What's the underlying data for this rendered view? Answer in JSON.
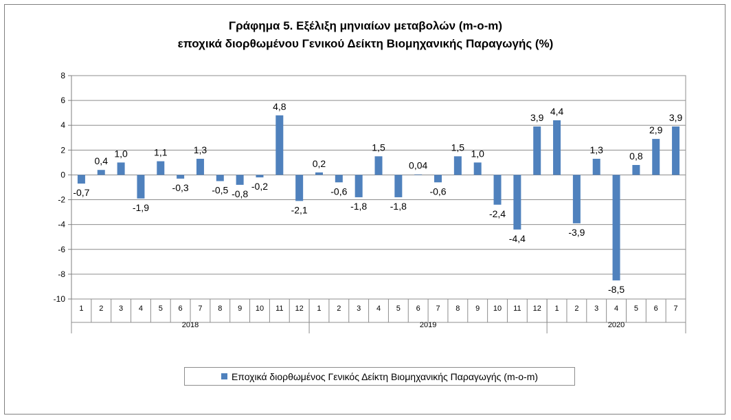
{
  "chart_data": {
    "type": "bar",
    "title": "Γράφημα 5. Εξέλιξη μηνιαίων μεταβολών (m-o-m)",
    "subtitle": "εποχικά διορθωμένου Γενικού Δείκτη Βιομηχανικής Παραγωγής (%)",
    "xlabel": "",
    "ylabel": "",
    "ylim": [
      -10,
      8
    ],
    "yticks": [
      8,
      6,
      4,
      2,
      0,
      -2,
      -4,
      -6,
      -8,
      -10
    ],
    "grid": true,
    "legend_position": "bottom",
    "color": "#4f81bd",
    "years": [
      {
        "label": "2018",
        "months": [
          "1",
          "2",
          "3",
          "4",
          "5",
          "6",
          "7",
          "8",
          "9",
          "10",
          "11",
          "12"
        ]
      },
      {
        "label": "2019",
        "months": [
          "1",
          "2",
          "3",
          "4",
          "5",
          "6",
          "7",
          "8",
          "9",
          "10",
          "11",
          "12"
        ]
      },
      {
        "label": "2020",
        "months": [
          "1",
          "2",
          "3",
          "4",
          "5",
          "6",
          "7"
        ]
      }
    ],
    "series": [
      {
        "name": "Εποχικά διορθωμένος Γενικός Δείκτη Βιομηχανικής Παραγωγής (m-o-m)",
        "values": [
          -0.7,
          0.4,
          1.0,
          -1.9,
          1.1,
          -0.3,
          1.3,
          -0.5,
          -0.8,
          -0.2,
          4.8,
          -2.1,
          0.2,
          -0.6,
          -1.8,
          1.5,
          -1.8,
          0.04,
          -0.6,
          1.5,
          1.0,
          -2.4,
          -4.4,
          3.9,
          4.4,
          -3.9,
          1.3,
          -8.5,
          0.8,
          2.9,
          3.9
        ],
        "labels": [
          "-0,7",
          "0,4",
          "1,0",
          "-1,9",
          "1,1",
          "-0,3",
          "1,3",
          "-0,5",
          "-0,8",
          "-0,2",
          "4,8",
          "-2,1",
          "0,2",
          "-0,6",
          "-1,8",
          "1,5",
          "-1,8",
          "0,04",
          "-0,6",
          "1,5",
          "1,0",
          "-2,4",
          "-4,4",
          "3,9",
          "4,4",
          "-3,9",
          "1,3",
          "-8,5",
          "0,8",
          "2,9",
          "3,9"
        ]
      }
    ]
  }
}
